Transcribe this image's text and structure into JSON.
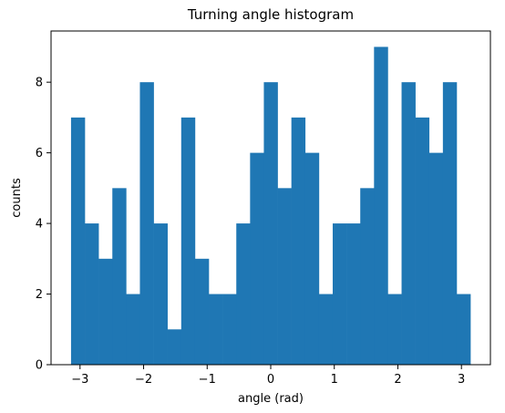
{
  "chart_data": {
    "type": "bar",
    "title": "Turning angle histogram",
    "xlabel": "angle (rad)",
    "ylabel": "counts",
    "xlim": [
      -3.456,
      3.456
    ],
    "ylim": [
      0,
      9.45
    ],
    "x_ticks": [
      -3,
      -2,
      -1,
      0,
      1,
      2,
      3
    ],
    "y_ticks": [
      0,
      2,
      4,
      6,
      8
    ],
    "bin_range": [
      -3.1416,
      3.1416
    ],
    "values": [
      7,
      4,
      3,
      5,
      2,
      8,
      4,
      1,
      7,
      3,
      2,
      2,
      4,
      6,
      8,
      5,
      7,
      6,
      2,
      4,
      4,
      5,
      9,
      2,
      8,
      7,
      6,
      8,
      2
    ],
    "bar_color": "#1f77b4",
    "grid": false,
    "legend": "none"
  }
}
